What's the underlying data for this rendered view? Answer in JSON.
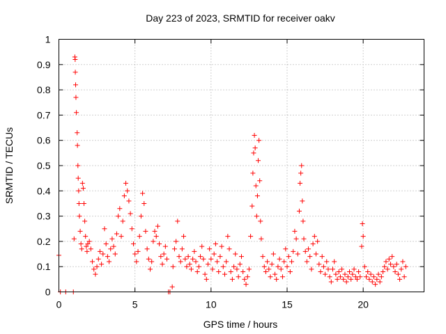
{
  "chart_data": {
    "type": "scatter",
    "title": "Day 223 of 2023, SRMTID for receiver oakv",
    "xlabel": "GPS time / hours",
    "ylabel": "SRMTID / TECUs",
    "xlim": [
      0,
      24
    ],
    "ylim": [
      0,
      1
    ],
    "x_ticks": [
      0,
      5,
      10,
      15,
      20
    ],
    "x_tick_labels": [
      "0",
      "5",
      "10",
      "15",
      "20"
    ],
    "y_ticks": [
      0,
      0.1,
      0.2,
      0.3,
      0.4,
      0.5,
      0.6,
      0.7,
      0.8,
      0.9,
      1
    ],
    "y_tick_labels": [
      "0",
      "0.1",
      "0.2",
      "0.3",
      "0.4",
      "0.5",
      "0.6",
      "0.7",
      "0.8",
      "0.9",
      "1"
    ],
    "grid": true,
    "marker": "plus",
    "color": "#ff0000",
    "series": [
      {
        "name": "SRMTID",
        "points": [
          [
            0.0,
            0.145
          ],
          [
            0.1,
            0.0
          ],
          [
            0.45,
            0.0
          ],
          [
            0.95,
            0.0
          ],
          [
            1.0,
            0.21
          ],
          [
            1.05,
            0.93
          ],
          [
            1.07,
            0.92
          ],
          [
            1.08,
            0.87
          ],
          [
            1.1,
            0.82
          ],
          [
            1.12,
            0.77
          ],
          [
            1.15,
            0.71
          ],
          [
            1.2,
            0.63
          ],
          [
            1.22,
            0.58
          ],
          [
            1.25,
            0.5
          ],
          [
            1.27,
            0.45
          ],
          [
            1.3,
            0.4
          ],
          [
            1.32,
            0.35
          ],
          [
            1.35,
            0.3
          ],
          [
            1.4,
            0.24
          ],
          [
            1.45,
            0.19
          ],
          [
            1.5,
            0.17
          ],
          [
            1.55,
            0.43
          ],
          [
            1.6,
            0.41
          ],
          [
            1.65,
            0.35
          ],
          [
            1.7,
            0.28
          ],
          [
            1.75,
            0.22
          ],
          [
            1.8,
            0.18
          ],
          [
            1.85,
            0.16
          ],
          [
            1.9,
            0.19
          ],
          [
            2.0,
            0.2
          ],
          [
            2.1,
            0.17
          ],
          [
            2.2,
            0.12
          ],
          [
            2.3,
            0.09
          ],
          [
            2.4,
            0.07
          ],
          [
            2.5,
            0.1
          ],
          [
            2.6,
            0.13
          ],
          [
            2.7,
            0.16
          ],
          [
            2.8,
            0.11
          ],
          [
            2.9,
            0.15
          ],
          [
            3.0,
            0.25
          ],
          [
            3.1,
            0.19
          ],
          [
            3.2,
            0.14
          ],
          [
            3.3,
            0.12
          ],
          [
            3.4,
            0.17
          ],
          [
            3.5,
            0.21
          ],
          [
            3.6,
            0.18
          ],
          [
            3.7,
            0.15
          ],
          [
            3.8,
            0.23
          ],
          [
            3.9,
            0.3
          ],
          [
            4.0,
            0.33
          ],
          [
            4.1,
            0.22
          ],
          [
            4.2,
            0.28
          ],
          [
            4.3,
            0.38
          ],
          [
            4.4,
            0.43
          ],
          [
            4.5,
            0.4
          ],
          [
            4.6,
            0.36
          ],
          [
            4.7,
            0.31
          ],
          [
            4.8,
            0.25
          ],
          [
            4.9,
            0.19
          ],
          [
            5.0,
            0.15
          ],
          [
            5.1,
            0.12
          ],
          [
            5.2,
            0.16
          ],
          [
            5.3,
            0.22
          ],
          [
            5.4,
            0.3
          ],
          [
            5.5,
            0.39
          ],
          [
            5.6,
            0.35
          ],
          [
            5.7,
            0.24
          ],
          [
            5.8,
            0.17
          ],
          [
            5.9,
            0.13
          ],
          [
            6.0,
            0.09
          ],
          [
            6.1,
            0.12
          ],
          [
            6.2,
            0.2
          ],
          [
            6.3,
            0.24
          ],
          [
            6.4,
            0.22
          ],
          [
            6.5,
            0.26
          ],
          [
            6.6,
            0.19
          ],
          [
            6.7,
            0.14
          ],
          [
            6.8,
            0.11
          ],
          [
            6.9,
            0.15
          ],
          [
            7.0,
            0.18
          ],
          [
            7.1,
            0.13
          ],
          [
            7.2,
            0.0
          ],
          [
            7.3,
            0.0
          ],
          [
            7.45,
            0.02
          ],
          [
            7.5,
            0.1
          ],
          [
            7.6,
            0.17
          ],
          [
            7.7,
            0.2
          ],
          [
            7.8,
            0.28
          ],
          [
            7.9,
            0.14
          ],
          [
            8.0,
            0.12
          ],
          [
            8.1,
            0.17
          ],
          [
            8.2,
            0.22
          ],
          [
            8.3,
            0.13
          ],
          [
            8.4,
            0.1
          ],
          [
            8.5,
            0.14
          ],
          [
            8.6,
            0.11
          ],
          [
            8.7,
            0.09
          ],
          [
            8.8,
            0.13
          ],
          [
            8.9,
            0.16
          ],
          [
            9.0,
            0.12
          ],
          [
            9.1,
            0.08
          ],
          [
            9.2,
            0.1
          ],
          [
            9.3,
            0.14
          ],
          [
            9.4,
            0.18
          ],
          [
            9.5,
            0.13
          ],
          [
            9.6,
            0.07
          ],
          [
            9.7,
            0.05
          ],
          [
            9.8,
            0.11
          ],
          [
            9.9,
            0.17
          ],
          [
            10.0,
            0.13
          ],
          [
            10.1,
            0.09
          ],
          [
            10.2,
            0.15
          ],
          [
            10.3,
            0.19
          ],
          [
            10.4,
            0.12
          ],
          [
            10.5,
            0.08
          ],
          [
            10.6,
            0.14
          ],
          [
            10.7,
            0.18
          ],
          [
            10.8,
            0.1
          ],
          [
            10.9,
            0.07
          ],
          [
            11.0,
            0.12
          ],
          [
            11.1,
            0.22
          ],
          [
            11.2,
            0.17
          ],
          [
            11.3,
            0.08
          ],
          [
            11.4,
            0.05
          ],
          [
            11.5,
            0.1
          ],
          [
            11.6,
            0.15
          ],
          [
            11.7,
            0.09
          ],
          [
            11.8,
            0.06
          ],
          [
            11.9,
            0.11
          ],
          [
            12.0,
            0.14
          ],
          [
            12.1,
            0.08
          ],
          [
            12.2,
            0.05
          ],
          [
            12.3,
            0.03
          ],
          [
            12.4,
            0.06
          ],
          [
            12.5,
            0.09
          ],
          [
            12.6,
            0.22
          ],
          [
            12.7,
            0.34
          ],
          [
            12.75,
            0.47
          ],
          [
            12.8,
            0.55
          ],
          [
            12.85,
            0.62
          ],
          [
            12.9,
            0.57
          ],
          [
            12.95,
            0.42
          ],
          [
            13.0,
            0.3
          ],
          [
            13.05,
            0.38
          ],
          [
            13.1,
            0.52
          ],
          [
            13.15,
            0.6
          ],
          [
            13.2,
            0.44
          ],
          [
            13.25,
            0.28
          ],
          [
            13.3,
            0.21
          ],
          [
            13.4,
            0.14
          ],
          [
            13.5,
            0.1
          ],
          [
            13.6,
            0.08
          ],
          [
            13.7,
            0.12
          ],
          [
            13.8,
            0.09
          ],
          [
            13.9,
            0.06
          ],
          [
            14.0,
            0.11
          ],
          [
            14.1,
            0.15
          ],
          [
            14.2,
            0.07
          ],
          [
            14.3,
            0.05
          ],
          [
            14.4,
            0.1
          ],
          [
            14.5,
            0.13
          ],
          [
            14.6,
            0.09
          ],
          [
            14.7,
            0.06
          ],
          [
            14.8,
            0.12
          ],
          [
            14.9,
            0.17
          ],
          [
            15.0,
            0.1
          ],
          [
            15.1,
            0.14
          ],
          [
            15.2,
            0.08
          ],
          [
            15.3,
            0.12
          ],
          [
            15.4,
            0.16
          ],
          [
            15.5,
            0.24
          ],
          [
            15.6,
            0.21
          ],
          [
            15.7,
            0.15
          ],
          [
            15.8,
            0.32
          ],
          [
            15.85,
            0.43
          ],
          [
            15.9,
            0.47
          ],
          [
            15.95,
            0.5
          ],
          [
            16.0,
            0.36
          ],
          [
            16.05,
            0.28
          ],
          [
            16.1,
            0.21
          ],
          [
            16.2,
            0.16
          ],
          [
            16.3,
            0.12
          ],
          [
            16.4,
            0.17
          ],
          [
            16.5,
            0.14
          ],
          [
            16.6,
            0.09
          ],
          [
            16.7,
            0.19
          ],
          [
            16.8,
            0.22
          ],
          [
            16.9,
            0.15
          ],
          [
            17.0,
            0.2
          ],
          [
            17.1,
            0.11
          ],
          [
            17.2,
            0.08
          ],
          [
            17.3,
            0.14
          ],
          [
            17.4,
            0.1
          ],
          [
            17.5,
            0.07
          ],
          [
            17.6,
            0.12
          ],
          [
            17.7,
            0.09
          ],
          [
            17.8,
            0.06
          ],
          [
            17.9,
            0.04
          ],
          [
            18.0,
            0.09
          ],
          [
            18.1,
            0.12
          ],
          [
            18.2,
            0.07
          ],
          [
            18.3,
            0.05
          ],
          [
            18.4,
            0.08
          ],
          [
            18.5,
            0.06
          ],
          [
            18.6,
            0.09
          ],
          [
            18.7,
            0.05
          ],
          [
            18.8,
            0.07
          ],
          [
            18.9,
            0.04
          ],
          [
            19.0,
            0.06
          ],
          [
            19.1,
            0.08
          ],
          [
            19.2,
            0.05
          ],
          [
            19.3,
            0.07
          ],
          [
            19.4,
            0.09
          ],
          [
            19.5,
            0.06
          ],
          [
            19.6,
            0.05
          ],
          [
            19.7,
            0.08
          ],
          [
            19.8,
            0.06
          ],
          [
            19.9,
            0.18
          ],
          [
            19.95,
            0.27
          ],
          [
            20.0,
            0.22
          ],
          [
            20.1,
            0.1
          ],
          [
            20.2,
            0.06
          ],
          [
            20.3,
            0.08
          ],
          [
            20.4,
            0.05
          ],
          [
            20.5,
            0.07
          ],
          [
            20.6,
            0.04
          ],
          [
            20.7,
            0.06
          ],
          [
            20.8,
            0.03
          ],
          [
            20.9,
            0.05
          ],
          [
            21.0,
            0.07
          ],
          [
            21.1,
            0.04
          ],
          [
            21.2,
            0.06
          ],
          [
            21.3,
            0.08
          ],
          [
            21.4,
            0.1
          ],
          [
            21.5,
            0.12
          ],
          [
            21.6,
            0.09
          ],
          [
            21.7,
            0.13
          ],
          [
            21.8,
            0.11
          ],
          [
            21.9,
            0.14
          ],
          [
            22.0,
            0.1
          ],
          [
            22.1,
            0.08
          ],
          [
            22.2,
            0.11
          ],
          [
            22.3,
            0.07
          ],
          [
            22.4,
            0.05
          ],
          [
            22.5,
            0.09
          ],
          [
            22.6,
            0.12
          ],
          [
            22.7,
            0.06
          ],
          [
            22.8,
            0.1
          ]
        ]
      }
    ]
  }
}
